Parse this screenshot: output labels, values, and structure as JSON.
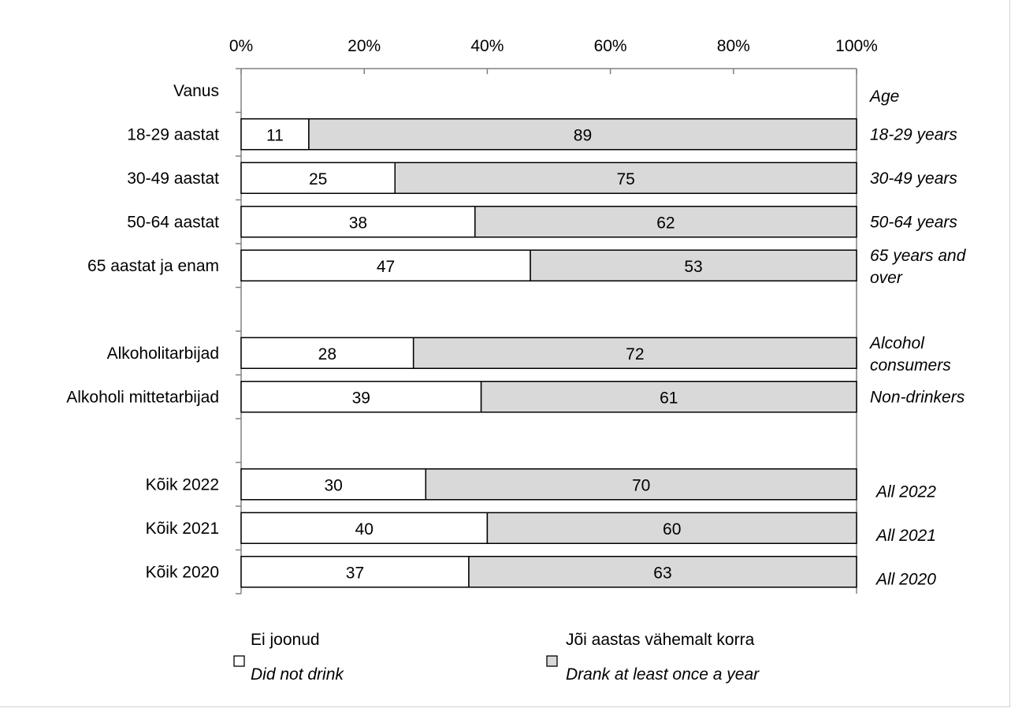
{
  "chart_data": {
    "type": "bar",
    "orientation": "horizontal",
    "stacked": true,
    "percent_axis": true,
    "xlim": [
      0,
      100
    ],
    "x_ticks": [
      "0%",
      "20%",
      "40%",
      "60%",
      "80%",
      "100%"
    ],
    "x_tick_values": [
      0,
      20,
      40,
      60,
      80,
      100
    ],
    "axis_position": "top",
    "grid": false,
    "legend_position": "bottom",
    "rows": [
      {
        "label": "Vanus",
        "label_en": "Age",
        "header": true
      },
      {
        "label": "18-29 aastat",
        "label_en": "18-29 years",
        "values": [
          11,
          89
        ]
      },
      {
        "label": "30-49 aastat",
        "label_en": "30-49 years",
        "values": [
          25,
          75
        ]
      },
      {
        "label": "50-64 aastat",
        "label_en": "50-64 years",
        "values": [
          38,
          62
        ]
      },
      {
        "label": "65 aastat ja enam",
        "label_en": "65 years and over",
        "values": [
          47,
          53
        ]
      },
      {
        "label": "",
        "label_en": "",
        "spacer": true
      },
      {
        "label": "Alkoholitarbijad",
        "label_en": "Alcohol consumers",
        "values": [
          28,
          72
        ]
      },
      {
        "label": "Alkoholi mittetarbijad",
        "label_en": "Non-drinkers",
        "values": [
          39,
          61
        ]
      },
      {
        "label": "",
        "label_en": "",
        "spacer": true
      },
      {
        "label": "Kõik 2022",
        "label_en": "All 2022",
        "values": [
          30,
          70
        ]
      },
      {
        "label": "Kõik 2021",
        "label_en": "All 2021",
        "values": [
          40,
          60
        ]
      },
      {
        "label": "Kõik 2020",
        "label_en": "All 2020",
        "values": [
          37,
          63
        ]
      }
    ],
    "series": [
      {
        "name": "Ei joonud",
        "name_en": "Did not drink",
        "color": "#ffffff"
      },
      {
        "name": "Jõi aastas vähemalt korra",
        "name_en": "Drank at least once a year",
        "color": "#d9d9d9"
      }
    ]
  }
}
